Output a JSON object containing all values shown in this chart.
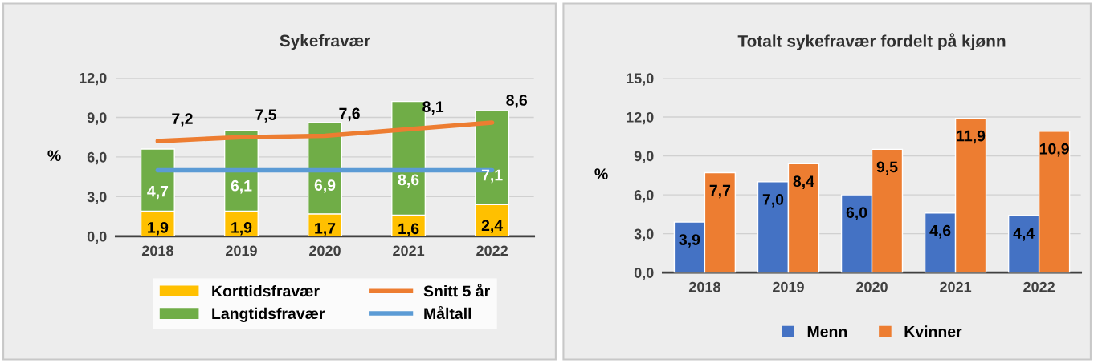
{
  "chart_data": [
    {
      "type": "bar",
      "title": "Sykefravær",
      "ylabel": "%",
      "stacked": true,
      "categories": [
        "2018",
        "2019",
        "2020",
        "2021",
        "2022"
      ],
      "series": [
        {
          "name": "Korttidsfravær",
          "color": "#ffc000",
          "values": [
            1.9,
            1.9,
            1.7,
            1.6,
            2.4
          ],
          "value_labels": [
            "1,9",
            "1,9",
            "1,7",
            "1,6",
            "2,4"
          ]
        },
        {
          "name": "Langtidsfravær",
          "color": "#70ad47",
          "values": [
            4.7,
            6.1,
            6.9,
            8.6,
            7.1
          ],
          "value_labels": [
            "4,7",
            "6,1",
            "6,9",
            "8,6",
            "7,1"
          ]
        },
        {
          "name": "Snitt 5 år",
          "type": "line",
          "color": "#ed7d31",
          "values": [
            7.2,
            7.5,
            7.6,
            8.1,
            8.6
          ],
          "value_labels": [
            "7,2",
            "7,5",
            "7,6",
            "8,1",
            "8,6"
          ]
        },
        {
          "name": "Måltall",
          "type": "line",
          "color": "#5b9bd5",
          "values": [
            5.0,
            5.0,
            5.0,
            5.0,
            5.0
          ]
        }
      ],
      "ylim": [
        0,
        12
      ],
      "yticks": [
        {
          "value": 0,
          "label": "0,0"
        },
        {
          "value": 3,
          "label": "3,0"
        },
        {
          "value": 6,
          "label": "6,0"
        },
        {
          "value": 9,
          "label": "9,0"
        },
        {
          "value": 12,
          "label": "12,0"
        }
      ],
      "grid": "y",
      "legend": "bottom",
      "marker": "none",
      "line_style": "solid"
    },
    {
      "type": "bar",
      "title": "Totalt sykefravær fordelt på kjønn",
      "ylabel": "%",
      "categories": [
        "2018",
        "2019",
        "2020",
        "2021",
        "2022"
      ],
      "series": [
        {
          "name": "Menn",
          "color": "#4472c4",
          "values": [
            3.9,
            7.0,
            6.0,
            4.6,
            4.4
          ],
          "value_labels": [
            "3,9",
            "7,0",
            "6,0",
            "4,6",
            "4,4"
          ]
        },
        {
          "name": "Kvinner",
          "color": "#ed7d31",
          "values": [
            7.7,
            8.4,
            9.5,
            11.9,
            10.9
          ],
          "value_labels": [
            "7,7",
            "8,4",
            "9,5",
            "11,9",
            "10,9"
          ]
        }
      ],
      "ylim": [
        0,
        15
      ],
      "yticks": [
        {
          "value": 0,
          "label": "0,0"
        },
        {
          "value": 3,
          "label": "3,0"
        },
        {
          "value": 6,
          "label": "6,0"
        },
        {
          "value": 9,
          "label": "9,0"
        },
        {
          "value": 12,
          "label": "12,0"
        },
        {
          "value": 15,
          "label": "15,0"
        }
      ],
      "grid": "y",
      "legend": "bottom"
    }
  ]
}
